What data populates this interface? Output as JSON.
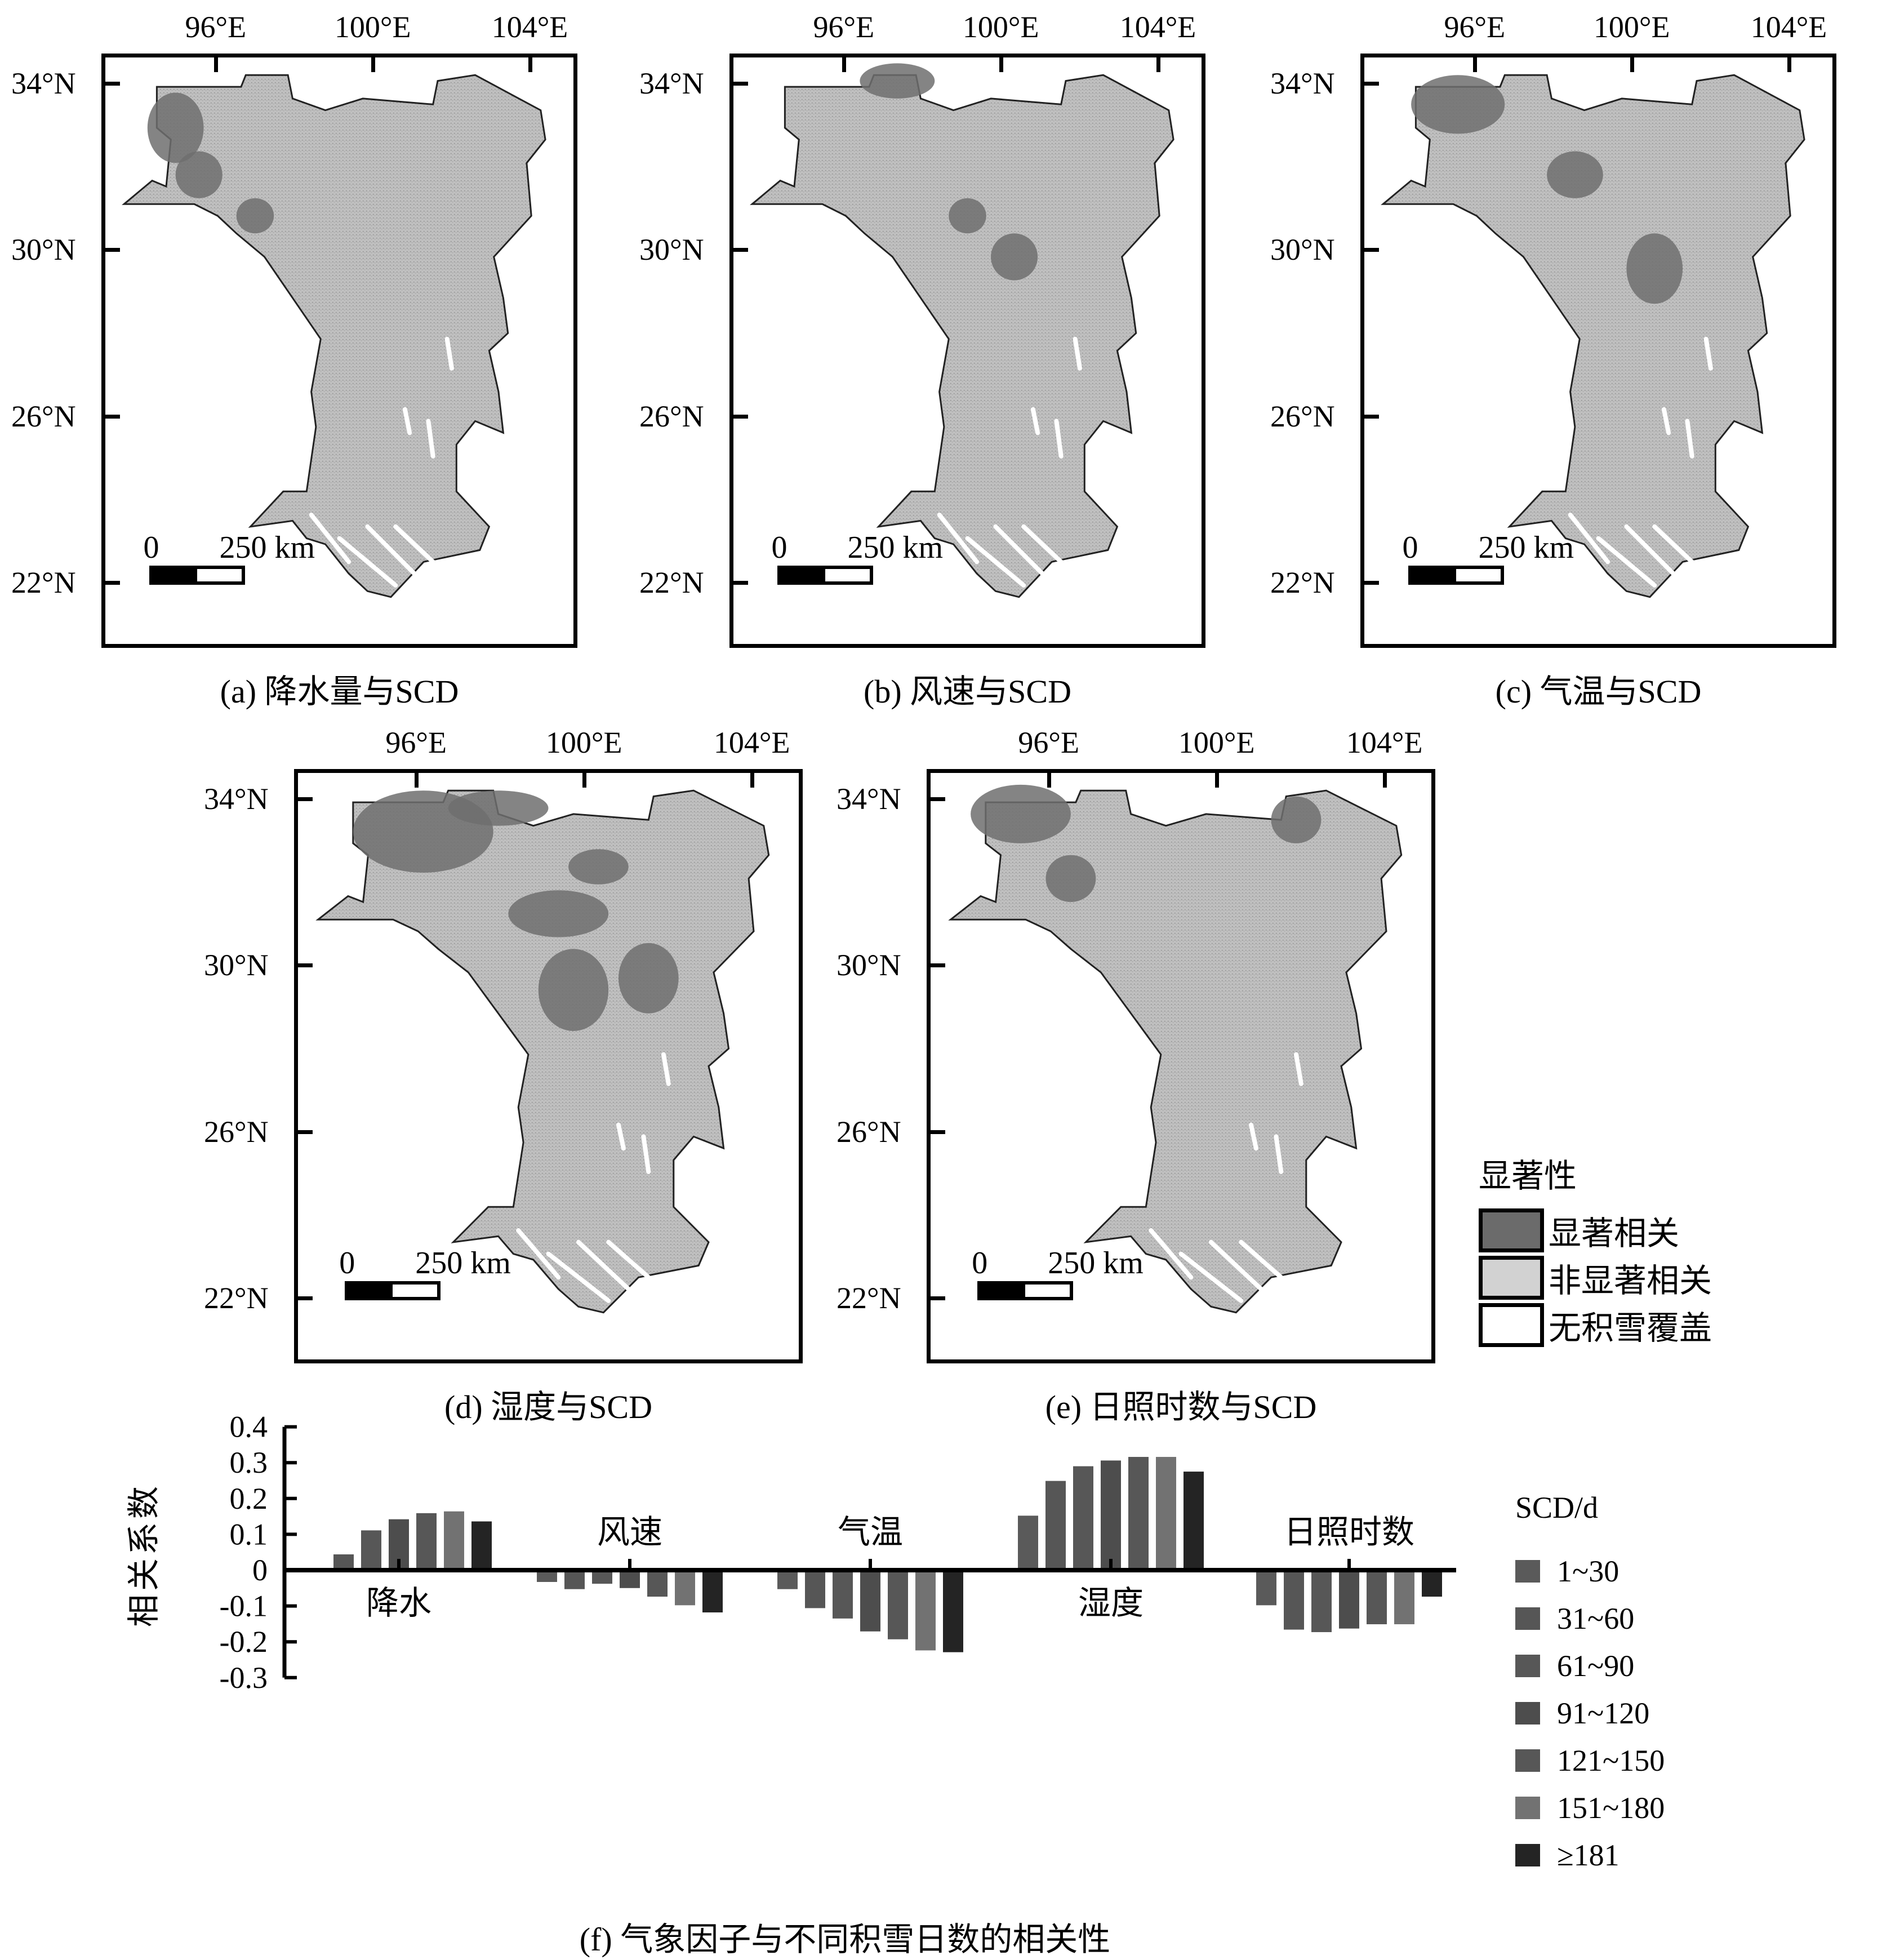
{
  "maps": [
    {
      "id": "a",
      "caption": "(a) 降水量与SCD",
      "lon_ticks": [
        "96°E",
        "100°E",
        "104°E"
      ],
      "lat_ticks": [
        "34°N",
        "30°N",
        "26°N",
        "22°N"
      ],
      "scale_zero": "0",
      "scale_label": "250 km"
    },
    {
      "id": "b",
      "caption": "(b) 风速与SCD",
      "lon_ticks": [
        "96°E",
        "100°E",
        "104°E"
      ],
      "lat_ticks": [
        "34°N",
        "30°N",
        "26°N",
        "22°N"
      ],
      "scale_zero": "0",
      "scale_label": "250 km"
    },
    {
      "id": "c",
      "caption": "(c) 气温与SCD",
      "lon_ticks": [
        "96°E",
        "100°E",
        "104°E"
      ],
      "lat_ticks": [
        "34°N",
        "30°N",
        "26°N",
        "22°N"
      ],
      "scale_zero": "0",
      "scale_label": "250 km"
    },
    {
      "id": "d",
      "caption": "(d) 湿度与SCD",
      "lon_ticks": [
        "96°E",
        "100°E",
        "104°E"
      ],
      "lat_ticks": [
        "34°N",
        "30°N",
        "26°N",
        "22°N"
      ],
      "scale_zero": "0",
      "scale_label": "250 km"
    },
    {
      "id": "e",
      "caption": "(e) 日照时数与SCD",
      "lon_ticks": [
        "96°E",
        "100°E",
        "104°E"
      ],
      "lat_ticks": [
        "34°N",
        "30°N",
        "26°N",
        "22°N"
      ],
      "scale_zero": "0",
      "scale_label": "250 km"
    }
  ],
  "significance_legend": {
    "title": "显著性",
    "items": [
      {
        "label": "显著相关",
        "color": "#6b6b6b"
      },
      {
        "label": "非显著相关",
        "color": "#d2d2d2"
      },
      {
        "label": "无积雪覆盖",
        "color": "#ffffff"
      }
    ]
  },
  "colors": {
    "map_fill": "#bdbdbd",
    "map_sig": "#6e6e6e",
    "axis": "#000000"
  },
  "chart_data": {
    "type": "bar",
    "title": "(f) 气象因子与不同积雪日数的相关性",
    "xlabel": "",
    "ylabel": "相关系数",
    "ylim": [
      -0.3,
      0.4
    ],
    "yticks": [
      "0.4",
      "0.3",
      "0.2",
      "0.1",
      "0",
      "-0.1",
      "-0.2",
      "-0.3"
    ],
    "ytick_values": [
      0.4,
      0.3,
      0.2,
      0.1,
      0,
      -0.1,
      -0.2,
      -0.3
    ],
    "categories": [
      "降水",
      "风速",
      "气温",
      "湿度",
      "日照时数"
    ],
    "category_label_side": [
      "below",
      "above",
      "above",
      "below",
      "above"
    ],
    "legend_title": "SCD/d",
    "legend_position": "right",
    "series": [
      {
        "name": "1~30",
        "color": "#5a5a5a",
        "values": [
          -0.005,
          -0.033,
          -0.053,
          0.152,
          -0.098
        ]
      },
      {
        "name": "31~60",
        "color": "#565656",
        "values": [
          0.044,
          -0.053,
          -0.106,
          0.249,
          -0.166
        ]
      },
      {
        "name": "61~90",
        "color": "#575757",
        "values": [
          0.111,
          -0.038,
          -0.135,
          0.29,
          -0.173
        ]
      },
      {
        "name": "91~120",
        "color": "#4d4d4d",
        "values": [
          0.142,
          -0.05,
          -0.171,
          0.306,
          -0.163
        ]
      },
      {
        "name": "121~150",
        "color": "#575757",
        "values": [
          0.159,
          -0.074,
          -0.193,
          0.316,
          -0.151
        ]
      },
      {
        "name": "151~180",
        "color": "#727272",
        "values": [
          0.164,
          -0.098,
          -0.224,
          0.316,
          -0.151
        ]
      },
      {
        "name": "≥181",
        "color": "#242424",
        "values": [
          0.136,
          -0.118,
          -0.229,
          0.275,
          -0.074
        ]
      }
    ]
  }
}
